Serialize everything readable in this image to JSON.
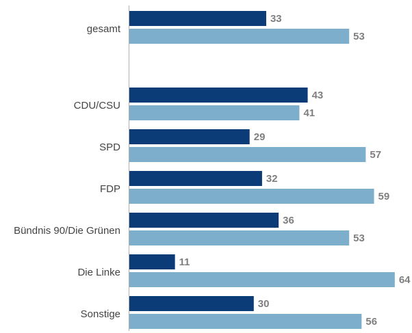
{
  "chart_data": {
    "type": "bar",
    "orientation": "horizontal",
    "categories": [
      "gesamt",
      null,
      "CDU/CSU",
      "SPD",
      "FDP",
      "Bündnis 90/Die Grünen",
      "Die Linke",
      "Sonstige"
    ],
    "series": [
      {
        "color": "#0b3c78",
        "values": [
          33,
          null,
          43,
          29,
          32,
          36,
          11,
          30
        ]
      },
      {
        "color": "#7dafcc",
        "values": [
          53,
          null,
          41,
          57,
          59,
          53,
          64,
          56
        ]
      }
    ]
  }
}
